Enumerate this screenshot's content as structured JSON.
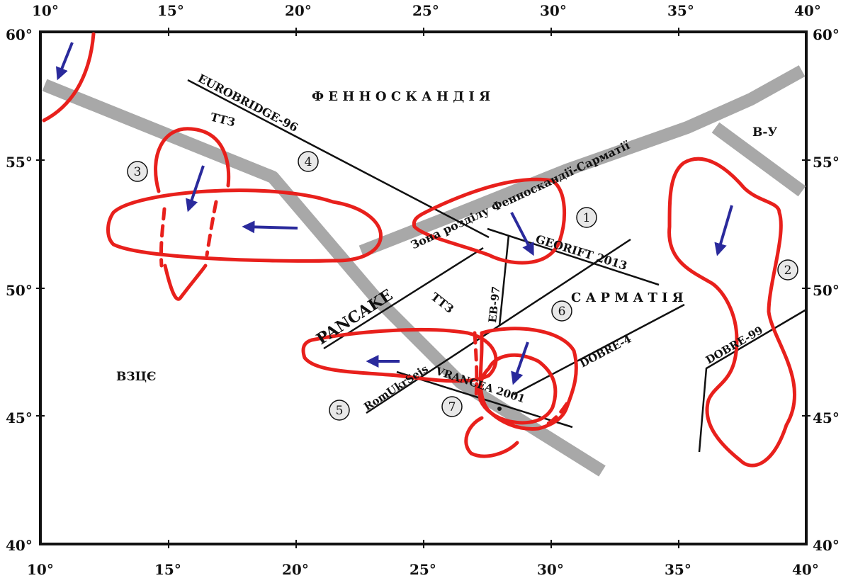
{
  "axes": {
    "top_ticks": [
      "10°",
      "15°",
      "20°",
      "25°",
      "30°",
      "35°",
      "40°"
    ],
    "bottom_ticks": [
      "10°",
      "15°",
      "20°",
      "25°",
      "30°",
      "35°",
      "40°"
    ],
    "left_ticks": [
      "60°",
      "55°",
      "50°",
      "45°",
      "40°"
    ],
    "right_ticks": [
      "60°",
      "55°",
      "50°",
      "45°",
      "40°"
    ]
  },
  "regions": {
    "fennoscandia": "Ф Е Н Н О С К А Н Д І Я",
    "sarmatia": "С А Р М А Т І Я",
    "wzce": "ВЗЦЄ",
    "vu": "В-У",
    "boundary": "Зона розділу Фенноскандії-Сарматії",
    "ttz_north": "ТТЗ",
    "ttz_south": "ТТЗ"
  },
  "profiles": {
    "eurobridge": "EUROBRIDGE-96",
    "georift": "GEORIFT 2013",
    "pancake": "PANCAKE",
    "eb97": "EB-97",
    "romukrseis": "RomUkrSeis",
    "vrancea": "VRANCEA 2001",
    "dobre4": "DOBRE-4",
    "dobre99": "DOBRE-99"
  },
  "markers": [
    "1",
    "2",
    "3",
    "4",
    "5",
    "6",
    "7"
  ],
  "colors": {
    "anomaly_outline": "#e8201c",
    "arrow": "#2a2a9c",
    "tectonic_zone": "#a8a8a8",
    "profile_line": "#111111",
    "frame": "#111111"
  }
}
